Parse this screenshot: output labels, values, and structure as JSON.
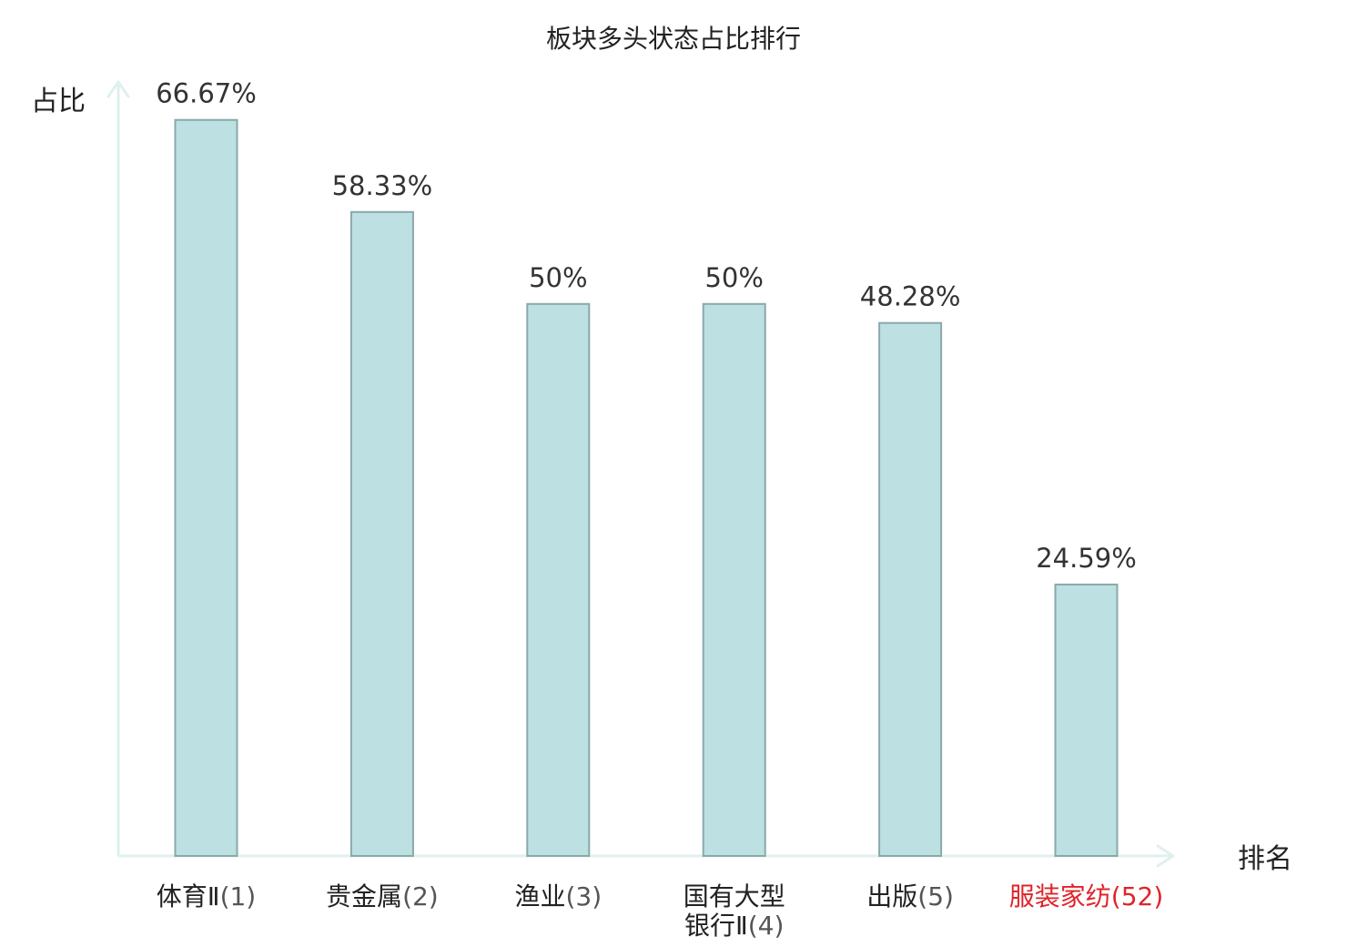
{
  "chart_data": {
    "type": "bar",
    "title": "板块多头状态占比排行",
    "ylabel": "占比",
    "xlabel": "排名",
    "ylim": [
      0,
      70
    ],
    "grid": false,
    "legend": "none",
    "bar_color": "#bde0e3",
    "bar_border_color": "#8aa8ab",
    "axis_color": "#dff0ee",
    "highlight_color": "#e0242a",
    "categories": [
      {
        "name_lines": [
          "体育Ⅱ"
        ],
        "rank": "(1)",
        "highlight": false
      },
      {
        "name_lines": [
          "贵金属"
        ],
        "rank": "(2)",
        "highlight": false
      },
      {
        "name_lines": [
          "渔业"
        ],
        "rank": "(3)",
        "highlight": false
      },
      {
        "name_lines": [
          "国有大型",
          "银行Ⅱ"
        ],
        "rank": "(4)",
        "highlight": false
      },
      {
        "name_lines": [
          "出版"
        ],
        "rank": "(5)",
        "highlight": false
      },
      {
        "name_lines": [
          "服装家纺"
        ],
        "rank": "(52)",
        "highlight": true
      }
    ],
    "values": [
      66.67,
      58.33,
      50,
      50,
      48.28,
      24.59
    ],
    "value_labels": [
      "66.67%",
      "58.33%",
      "50%",
      "50%",
      "48.28%",
      "24.59%"
    ]
  }
}
